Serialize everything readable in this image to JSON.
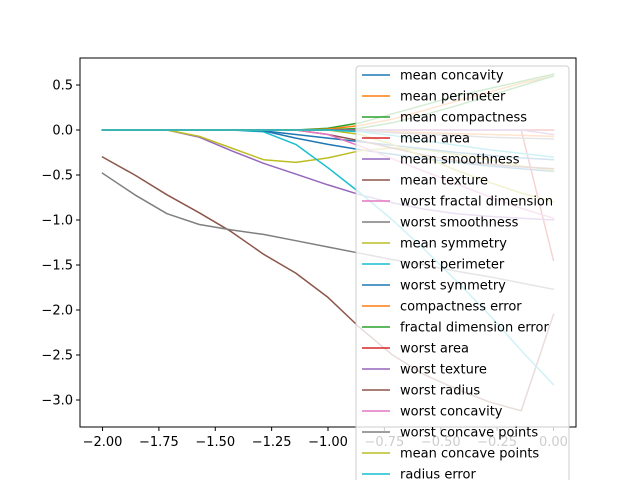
{
  "chart_data": {
    "type": "line",
    "title": "",
    "xlabel": "",
    "ylabel": "",
    "xlim": [
      -2.1,
      0.1
    ],
    "ylim": [
      -3.3,
      0.8
    ],
    "grid": false,
    "legend_position": "right",
    "x_ticks": [
      -2.0,
      -1.75,
      -1.5,
      -1.25,
      -1.0,
      -0.75,
      -0.5,
      -0.25,
      0.0
    ],
    "y_ticks": [
      0.5,
      0.0,
      -0.5,
      -1.0,
      -1.5,
      -2.0,
      -2.5,
      -3.0
    ],
    "x_tick_labels": [
      "−2.00",
      "−1.75",
      "−1.50",
      "−1.25",
      "−1.00",
      "−0.75",
      "−0.50",
      "−0.25",
      "0.00"
    ],
    "y_tick_labels": [
      "0.5",
      "0.0",
      "−0.5",
      "−1.0",
      "−1.5",
      "−2.0",
      "−2.5",
      "−3.0"
    ],
    "x": [
      -2.0,
      -1.857,
      -1.714,
      -1.571,
      -1.429,
      -1.286,
      -1.143,
      -1.0,
      -0.857,
      -0.714,
      -0.571,
      -0.429,
      -0.286,
      -0.143,
      0.0
    ],
    "series": [
      {
        "name": "mean concavity",
        "color": "#1f77b4",
        "values": [
          0,
          0,
          0,
          0,
          0,
          -0.01,
          -0.09,
          -0.16,
          -0.22,
          -0.27,
          -0.32,
          -0.36,
          -0.4,
          -0.43,
          -0.46
        ]
      },
      {
        "name": "mean perimeter",
        "color": "#ff7f0e",
        "values": [
          0,
          0,
          0,
          0,
          0,
          0,
          0,
          0,
          -0.01,
          -0.02,
          -0.03,
          -0.04,
          -0.05,
          -0.06,
          -0.07
        ]
      },
      {
        "name": "mean compactness",
        "color": "#2ca02c",
        "values": [
          0,
          0,
          0,
          0,
          0,
          0,
          0,
          0.02,
          0.08,
          0.18,
          0.28,
          0.38,
          0.46,
          0.54,
          0.62
        ]
      },
      {
        "name": "mean area",
        "color": "#d62728",
        "values": [
          0,
          0,
          0,
          0,
          0,
          0,
          0,
          0,
          0,
          0,
          0,
          0,
          0,
          0,
          -1.45
        ]
      },
      {
        "name": "mean smoothness",
        "color": "#9467bd",
        "values": [
          0,
          0,
          0,
          -0.08,
          -0.23,
          -0.37,
          -0.49,
          -0.61,
          -0.72,
          -0.81,
          -0.88,
          -0.93,
          -0.96,
          -0.98,
          -1.0
        ]
      },
      {
        "name": "mean texture",
        "color": "#8c564b",
        "values": [
          -0.3,
          -0.5,
          -0.72,
          -0.92,
          -1.13,
          -1.38,
          -1.59,
          -1.86,
          -2.2,
          -2.5,
          -2.72,
          -2.88,
          -3.02,
          -3.12,
          -2.05
        ]
      },
      {
        "name": "worst fractal dimension",
        "color": "#e377c2",
        "values": [
          0,
          0,
          0,
          0,
          0,
          0,
          0,
          0,
          0,
          0,
          0,
          0,
          0,
          0,
          0
        ]
      },
      {
        "name": "worst smoothness",
        "color": "#7f7f7f",
        "values": [
          -0.48,
          -0.72,
          -0.93,
          -1.05,
          -1.11,
          -1.16,
          -1.23,
          -1.3,
          -1.37,
          -1.44,
          -1.5,
          -1.57,
          -1.63,
          -1.7,
          -1.77
        ]
      },
      {
        "name": "mean symmetry",
        "color": "#bcbd22",
        "values": [
          0,
          0,
          0,
          -0.07,
          -0.2,
          -0.33,
          -0.36,
          -0.31,
          -0.23,
          -0.2,
          -0.22,
          -0.27,
          -0.33,
          -0.4,
          -0.45
        ]
      },
      {
        "name": "worst perimeter",
        "color": "#17becf",
        "values": [
          0,
          0,
          0,
          0,
          0,
          -0.02,
          -0.16,
          -0.42,
          -0.7,
          -1.0,
          -1.33,
          -1.68,
          -2.05,
          -2.45,
          -2.83
        ]
      },
      {
        "name": "worst symmetry",
        "color": "#1f77b4",
        "values": [
          0,
          0,
          0,
          0,
          0,
          -0.01,
          -0.05,
          -0.09,
          -0.13,
          -0.17,
          -0.21,
          -0.25,
          -0.28,
          -0.31,
          -0.33
        ]
      },
      {
        "name": "compactness error",
        "color": "#ff7f0e",
        "values": [
          0,
          0,
          0,
          0,
          0,
          0,
          0,
          0.01,
          0.05,
          0.12,
          0.22,
          0.32,
          0.42,
          0.52,
          0.6
        ]
      },
      {
        "name": "fractal dimension error",
        "color": "#2ca02c",
        "values": [
          0,
          0,
          0,
          0,
          0,
          0,
          0,
          0,
          0.02,
          0.08,
          0.17,
          0.27,
          0.38,
          0.49,
          0.6
        ]
      },
      {
        "name": "worst area",
        "color": "#d62728",
        "values": [
          0,
          0,
          0,
          0,
          0,
          0,
          0,
          0,
          0,
          0,
          0,
          0,
          0,
          0,
          0
        ]
      },
      {
        "name": "worst texture",
        "color": "#9467bd",
        "values": [
          0,
          0,
          0,
          0,
          0,
          0,
          0,
          0,
          0,
          0,
          0,
          0,
          0,
          0,
          -0.05
        ]
      },
      {
        "name": "worst radius",
        "color": "#8c564b",
        "values": [
          0,
          0,
          0,
          0,
          0,
          0,
          0,
          -0.05,
          -0.12,
          -0.2,
          -0.28,
          -0.34,
          -0.38,
          -0.41,
          -0.43
        ]
      },
      {
        "name": "worst concavity",
        "color": "#e377c2",
        "values": [
          0,
          0,
          0,
          0,
          0,
          0,
          0,
          -0.05,
          -0.18,
          -0.32,
          -0.46,
          -0.6,
          -0.74,
          -0.87,
          -0.98
        ]
      },
      {
        "name": "worst concave points",
        "color": "#7f7f7f",
        "values": [
          0,
          0,
          0,
          0,
          0,
          0,
          0,
          0,
          -0.01,
          -0.03,
          -0.05,
          -0.06,
          -0.08,
          -0.09,
          -0.1
        ]
      },
      {
        "name": "mean concave points",
        "color": "#bcbd22",
        "values": [
          0,
          0,
          0,
          0,
          0,
          0,
          0,
          0,
          -0.05,
          -0.16,
          -0.3,
          -0.45,
          -0.58,
          -0.7,
          -0.8
        ]
      },
      {
        "name": "radius error",
        "color": "#17becf",
        "values": [
          0,
          0,
          0,
          0,
          0,
          0,
          0,
          0,
          -0.02,
          -0.06,
          -0.12,
          -0.17,
          -0.22,
          -0.26,
          -0.3
        ]
      }
    ]
  }
}
